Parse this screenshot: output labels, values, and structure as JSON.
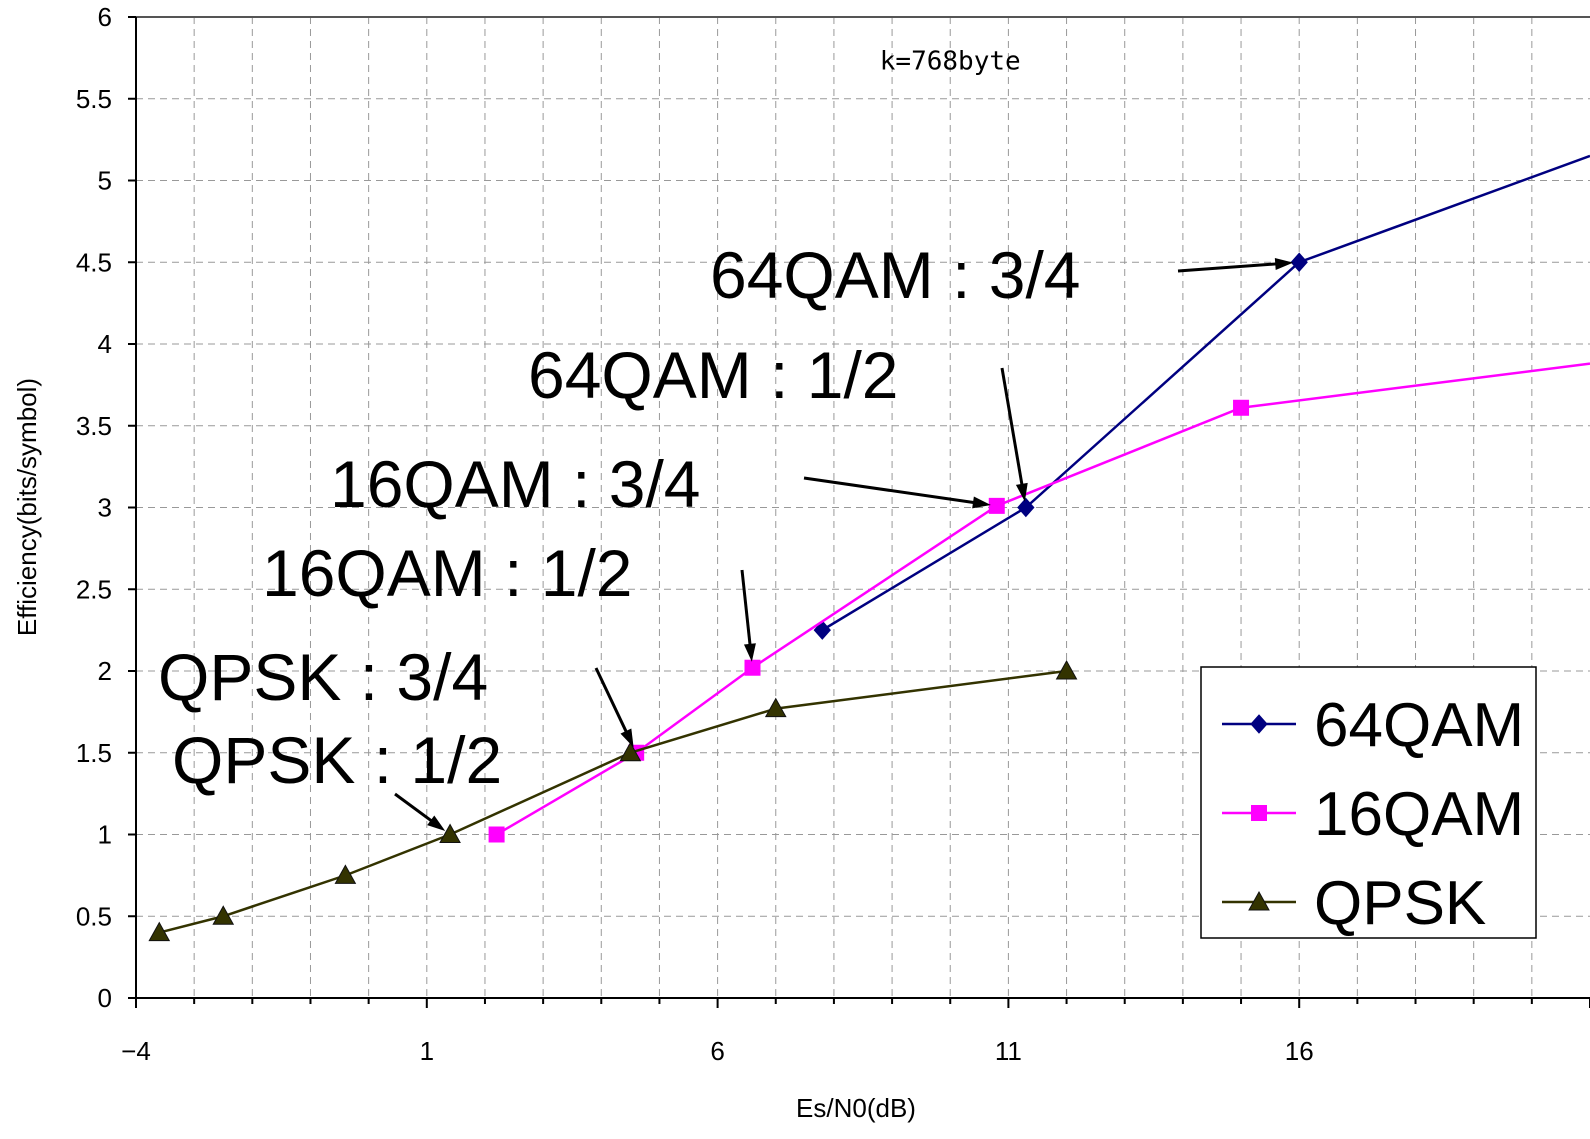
{
  "chart_data": {
    "type": "line",
    "title": "",
    "annotation": "k=768byte",
    "xlabel": "Es/N0(dB)",
    "ylabel": "Efficiency(bits/symbol)",
    "xlim": [
      -4,
      21
    ],
    "ylim": [
      0,
      6
    ],
    "x_ticks": [
      "−4",
      "1",
      "6",
      "11",
      "16"
    ],
    "y_ticks": [
      "0",
      "0.5",
      "1",
      "1.5",
      "2",
      "2.5",
      "3",
      "3.5",
      "4",
      "4.5",
      "5",
      "5.5",
      "6"
    ],
    "grid": true,
    "legend_position": "bottom-right",
    "series": [
      {
        "name": "64QAM",
        "color": "#000080",
        "marker": "diamond",
        "points": [
          [
            7.8,
            2.25
          ],
          [
            11.3,
            3.0
          ],
          [
            16.0,
            4.5
          ],
          [
            21.0,
            5.15
          ]
        ]
      },
      {
        "name": "16QAM",
        "color": "#ff00ff",
        "marker": "square",
        "points": [
          [
            2.2,
            1.0
          ],
          [
            4.6,
            1.5
          ],
          [
            6.6,
            2.02
          ],
          [
            10.8,
            3.01
          ],
          [
            15.0,
            3.61
          ],
          [
            21.0,
            3.88
          ]
        ]
      },
      {
        "name": "QPSK",
        "color": "#333300",
        "marker": "triangle",
        "points": [
          [
            -3.6,
            0.4
          ],
          [
            -2.5,
            0.5
          ],
          [
            -0.4,
            0.75
          ],
          [
            1.4,
            1.0
          ],
          [
            4.5,
            1.5
          ],
          [
            7.0,
            1.77
          ],
          [
            12.0,
            2.0
          ]
        ]
      }
    ],
    "callouts": [
      {
        "label": "64QAM : 3/4",
        "x": 16.0,
        "y": 4.5
      },
      {
        "label": "64QAM : 1/2",
        "x": 11.3,
        "y": 3.0
      },
      {
        "label": "16QAM : 3/4",
        "x": 10.8,
        "y": 3.01
      },
      {
        "label": "16QAM : 1/2",
        "x": 6.6,
        "y": 2.02
      },
      {
        "label": "QPSK : 3/4",
        "x": 4.6,
        "y": 1.5
      },
      {
        "label": "QPSK : 1/2",
        "x": 1.4,
        "y": 1.0
      }
    ]
  }
}
